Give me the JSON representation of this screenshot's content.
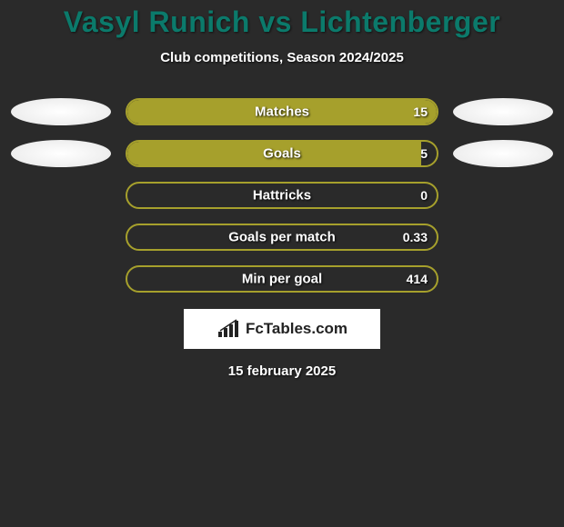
{
  "title": "Vasyl Runich vs Lichtenberger",
  "subtitle": "Club competitions, Season 2024/2025",
  "date": "15 february 2025",
  "logo_text": "FcTables.com",
  "bar_outer_width": 344,
  "fill_color": "#a6a02c",
  "border_color": "#a6a02c",
  "ellipse_left_color": "#ffffff",
  "ellipse_right_color": "#ffffff",
  "background_color": "#2a2a2a",
  "title_color": "#0b7a6b",
  "rows": [
    {
      "label": "Matches",
      "value": "15",
      "fill_pct": 100,
      "show_ellipses": true
    },
    {
      "label": "Goals",
      "value": "5",
      "fill_pct": 95,
      "show_ellipses": true
    },
    {
      "label": "Hattricks",
      "value": "0",
      "fill_pct": 0,
      "show_ellipses": false
    },
    {
      "label": "Goals per match",
      "value": "0.33",
      "fill_pct": 0,
      "show_ellipses": false
    },
    {
      "label": "Min per goal",
      "value": "414",
      "fill_pct": 0,
      "show_ellipses": false
    }
  ]
}
